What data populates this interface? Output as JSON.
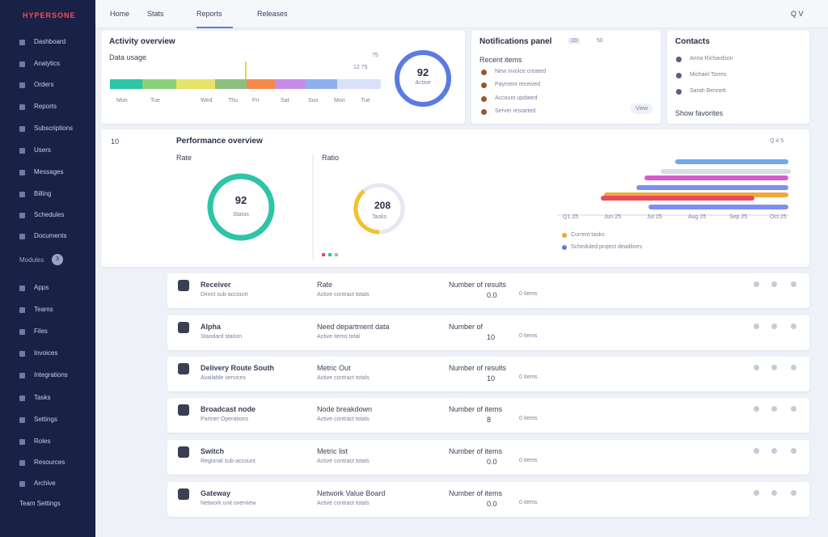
{
  "sidebar": {
    "logo": "HYPERSONE",
    "items": [
      "Dashboard",
      "Analytics",
      "Orders",
      "Reports",
      "Subscriptions",
      "Users",
      "Messages",
      "Billing",
      "Schedules",
      "Documents"
    ],
    "section": "Modules",
    "section_badge": "3",
    "items2": [
      "Apps",
      "Teams",
      "Files",
      "Invoices",
      "Integrations",
      "Tasks",
      "Settings",
      "Roles",
      "Resources",
      "Archive"
    ],
    "footer": "Team Settings"
  },
  "topbar": {
    "tabs": [
      "Home",
      "Stats",
      "Reports",
      "Releases"
    ],
    "user": "Q V"
  },
  "activity": {
    "title": "Activity overview",
    "subtitle": "Data usage",
    "right": "75",
    "right2": "12 75",
    "axis": [
      "Mon",
      "Tue",
      "Wed",
      "Thu",
      "Fri",
      "Sat",
      "Sun",
      "Mon",
      "Tue"
    ],
    "donut_value": "92",
    "donut_label": "Active"
  },
  "notifications": {
    "title": "Notifications panel",
    "badge": "10",
    "controls": "50",
    "subtitle": "Recent items",
    "items": [
      "New invoice created",
      "Payment received",
      "Account updated",
      "Server restarted"
    ],
    "button": "View"
  },
  "contacts": {
    "title": "Contacts",
    "items": [
      "Anna Richardson",
      "Michael Torres",
      "Sarah Bennett"
    ],
    "footer": "Show favorites"
  },
  "performance": {
    "left_label": "10",
    "title": "Performance overview",
    "right": "Q 4 5",
    "left_title": "Rate",
    "donut1": {
      "value": "92",
      "label": "Status"
    },
    "mid_title": "Ratio",
    "donut2": {
      "value": "208",
      "label": "Tasks"
    },
    "gantt_axis": [
      "Q1 25",
      "Jun 25",
      "Jul 25",
      "Aug 25",
      "Sep 25",
      "Oct 25"
    ],
    "legend": [
      "Current tasks",
      "Scheduled project deadlines"
    ]
  },
  "rows": [
    {
      "name": "Receiver",
      "sub": "Direct sub-account",
      "col2": "Rate",
      "col2sub": "Active contract totals",
      "col3": "Number of results",
      "val1": "0.0",
      "val2": "0 items"
    },
    {
      "name": "Alpha",
      "sub": "Standard station",
      "col2": "Need department data",
      "col2sub": "Active items total",
      "col3": "Number of",
      "val1": "10",
      "val2": "0 items"
    },
    {
      "name": "Delivery Route South",
      "sub": "Available services",
      "col2": "Metric Out",
      "col2sub": "Active contract totals",
      "col3": "Number of results",
      "val1": "10",
      "val2": "0 items"
    },
    {
      "name": "Broadcast node",
      "sub": "Partner Operations",
      "col2": "Node breakdown",
      "col2sub": "Active contract totals",
      "col3": "Number of items",
      "val1": "8",
      "val2": "0 items"
    },
    {
      "name": "Switch",
      "sub": "Regional sub-account",
      "col2": "Metric list",
      "col2sub": "Active contract totals",
      "col3": "Number of items",
      "val1": "0.0",
      "val2": "0 items"
    },
    {
      "name": "Gateway",
      "sub": "Network unit overview",
      "col2": "Network Value Board",
      "col2sub": "Active contract totals",
      "col3": "Number of items",
      "val1": "0.0",
      "val2": "0 items"
    }
  ]
}
